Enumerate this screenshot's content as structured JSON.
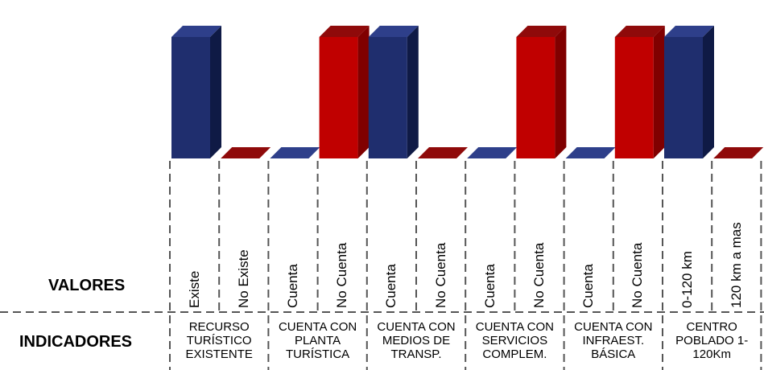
{
  "row_labels": {
    "values": "VALORES",
    "indicators": "INDICADORES"
  },
  "colors": {
    "blue": "#1f2e6e",
    "red": "#c00000"
  },
  "chart_data": {
    "type": "bar",
    "title": "",
    "xlabel": "",
    "ylabel": "",
    "grid": false,
    "legend": "none",
    "ylim": [
      0,
      1
    ],
    "categories": [
      "Existe",
      "No Existe",
      "Cuenta",
      "No Cuenta",
      "Cuenta",
      "No Cuenta",
      "Cuenta",
      "No Cuenta",
      "Cuenta",
      "No Cuenta",
      "0-120 km",
      "120 km a mas"
    ],
    "values": [
      1,
      0,
      0,
      1,
      1,
      0,
      0,
      1,
      0,
      1,
      1,
      0
    ],
    "bar_colors": [
      "blue",
      "red",
      "blue",
      "red",
      "blue",
      "red",
      "blue",
      "red",
      "blue",
      "red",
      "blue",
      "red"
    ],
    "groups": [
      {
        "lines": [
          "RECURSO",
          "TURÍSTICO",
          "EXISTENTE"
        ]
      },
      {
        "lines": [
          "CUENTA CON",
          "PLANTA",
          "TURÍSTICA"
        ]
      },
      {
        "lines": [
          "CUENTA CON",
          "MEDIOS DE",
          "TRANSP."
        ]
      },
      {
        "lines": [
          "CUENTA CON",
          "SERVICIOS",
          "COMPLEM."
        ]
      },
      {
        "lines": [
          "CUENTA CON",
          "INFRAEST.",
          "BÁSICA"
        ]
      },
      {
        "lines": [
          "CENTRO",
          "POBLADO 1-",
          "120Km"
        ]
      }
    ]
  }
}
